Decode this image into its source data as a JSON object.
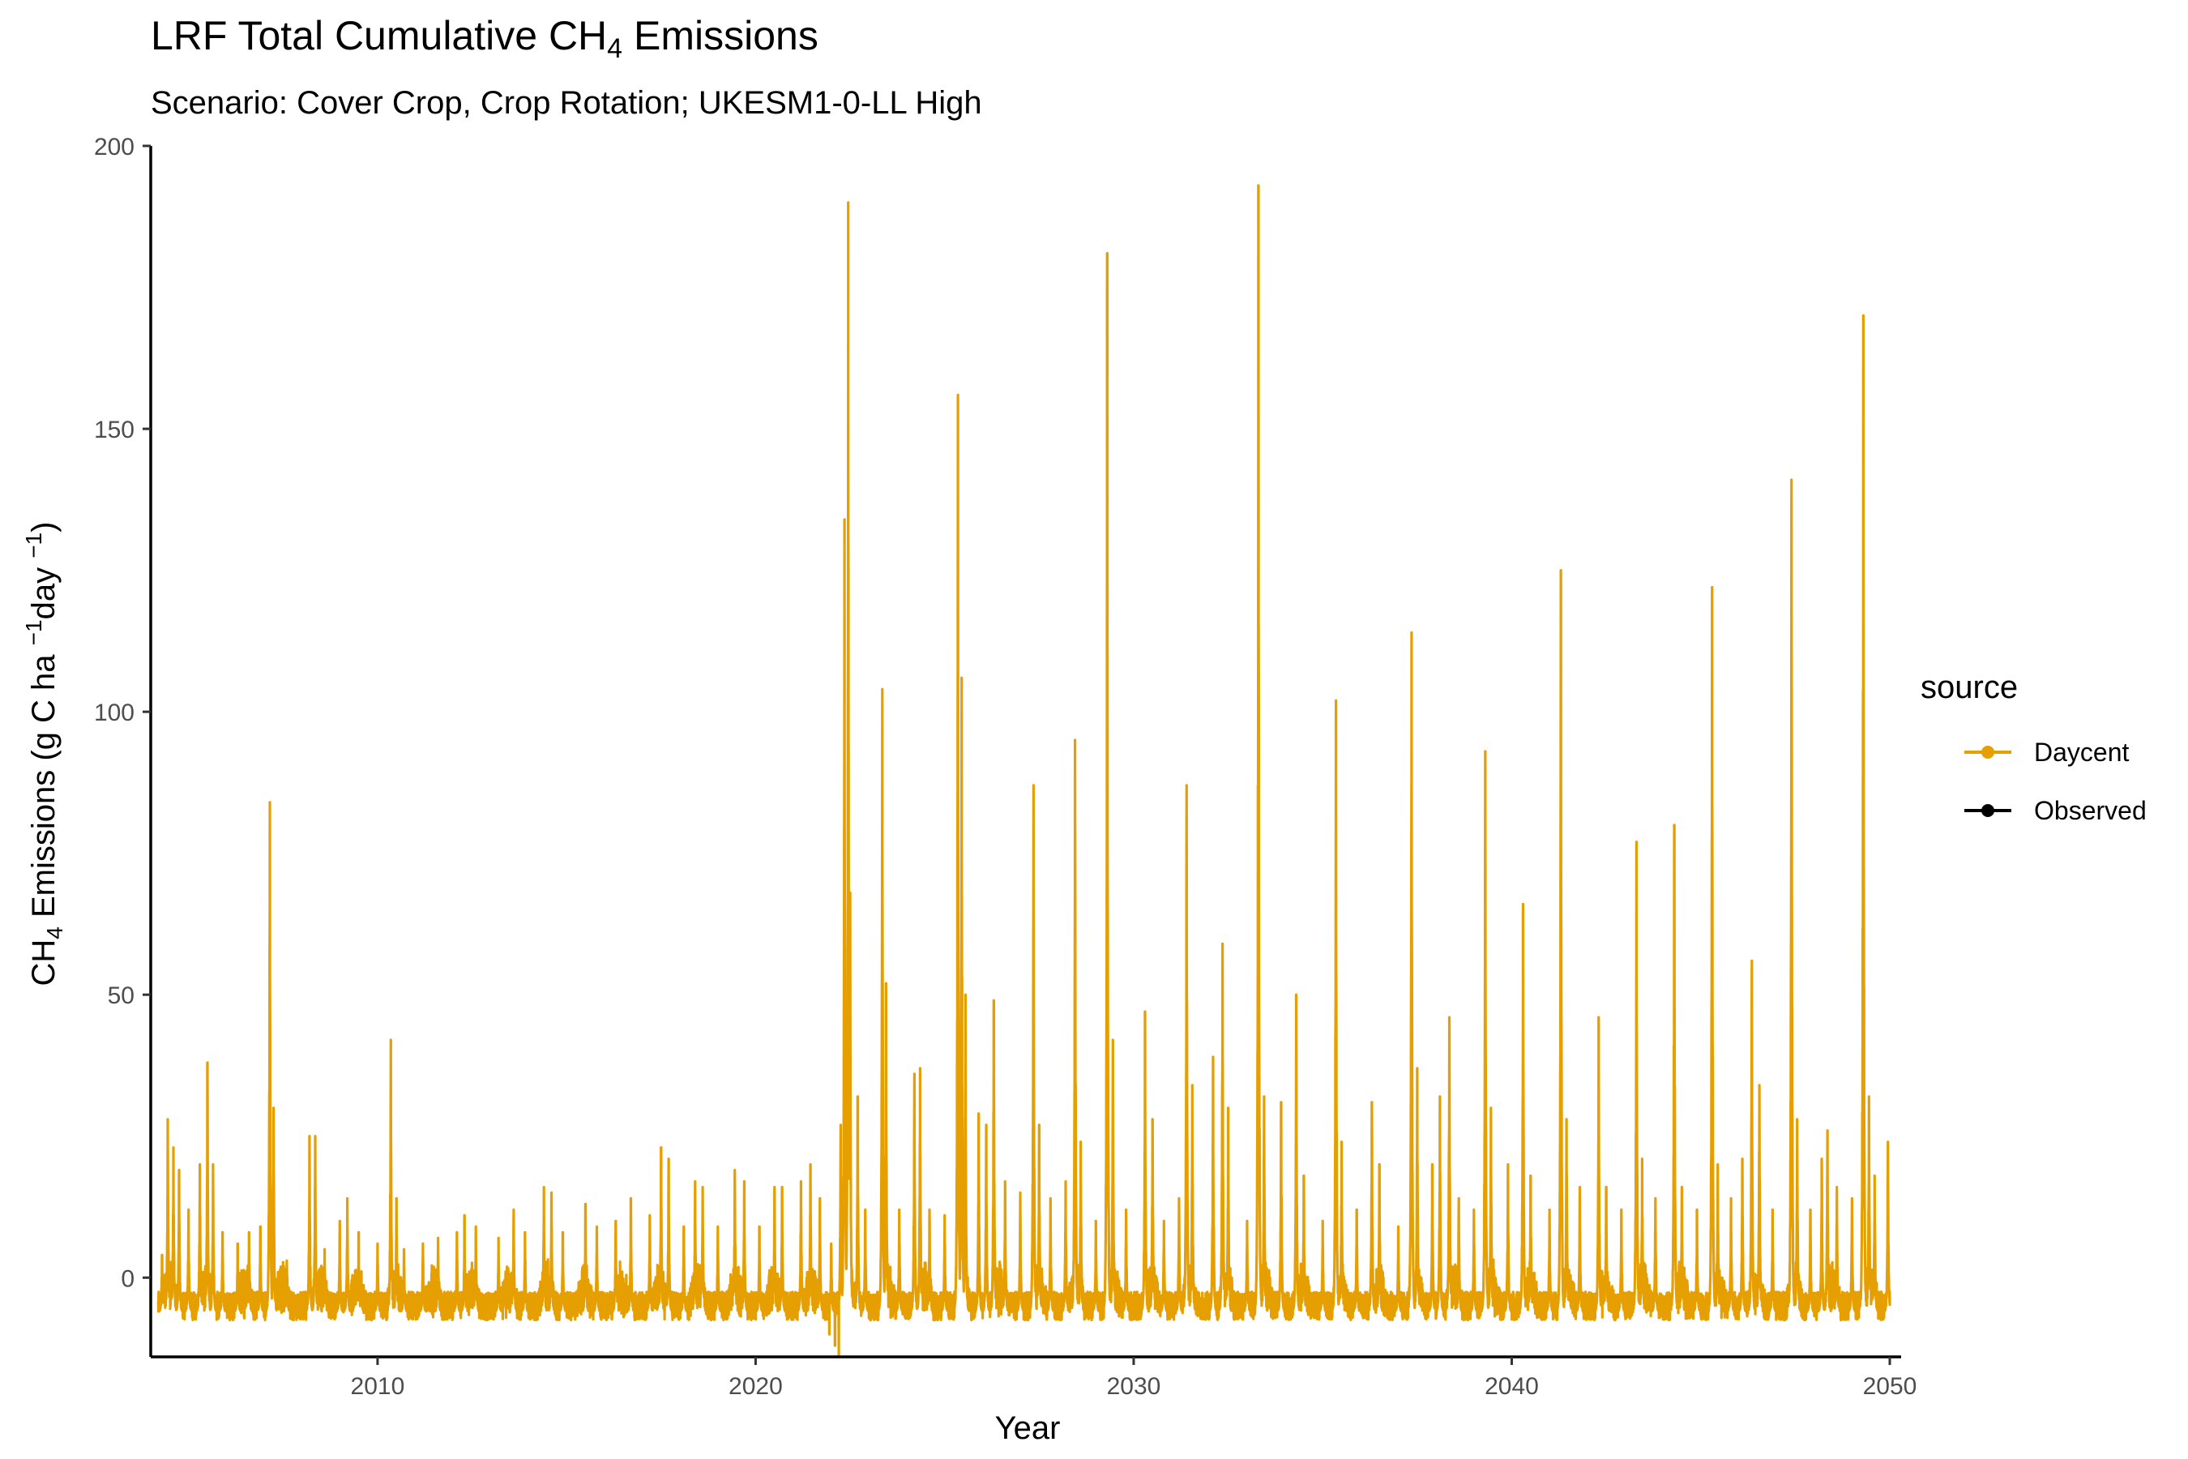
{
  "chart_data": {
    "type": "line",
    "title": "LRF Total Cumulative CH",
    "title_subscript": "4",
    "title_suffix": " Emissions",
    "subtitle": "Scenario: Cover Crop, Crop Rotation; UKESM1-0-LL High",
    "xlabel": "Year",
    "ylabel_prefix": "CH",
    "ylabel_subscript": "4",
    "ylabel_main": " Emissions (g C ha ",
    "ylabel_exp1": "−1",
    "ylabel_mid": "day ",
    "ylabel_exp2": "−1",
    "ylabel_close": ")",
    "xlim": [
      2004.0,
      2050.3
    ],
    "ylim": [
      -14,
      200
    ],
    "xticks": [
      2010,
      2020,
      2030,
      2040,
      2050
    ],
    "yticks": [
      0,
      50,
      100,
      150,
      200
    ],
    "grid": false,
    "legend": {
      "title": "source",
      "position": "right",
      "entries": [
        {
          "name": "Daycent",
          "color": "#E69F00"
        },
        {
          "name": "Observed",
          "color": "#000000"
        }
      ]
    },
    "series": [
      {
        "name": "Daycent",
        "color": "#E69F00",
        "baseline": -6,
        "noise_amplitude": 2.5,
        "peaks": [
          [
            2004.3,
            4
          ],
          [
            2004.45,
            28
          ],
          [
            2004.6,
            23
          ],
          [
            2004.75,
            19
          ],
          [
            2005.0,
            12
          ],
          [
            2005.3,
            20
          ],
          [
            2005.5,
            38
          ],
          [
            2005.65,
            20
          ],
          [
            2005.9,
            8
          ],
          [
            2006.3,
            6
          ],
          [
            2006.6,
            8
          ],
          [
            2006.9,
            9
          ],
          [
            2007.15,
            84
          ],
          [
            2007.25,
            30
          ],
          [
            2007.6,
            3
          ],
          [
            2008.2,
            25
          ],
          [
            2008.35,
            25
          ],
          [
            2008.6,
            5
          ],
          [
            2009.0,
            10
          ],
          [
            2009.2,
            14
          ],
          [
            2009.5,
            8
          ],
          [
            2010.0,
            6
          ],
          [
            2010.35,
            42
          ],
          [
            2010.5,
            14
          ],
          [
            2010.7,
            5
          ],
          [
            2011.2,
            6
          ],
          [
            2011.6,
            7
          ],
          [
            2012.1,
            8
          ],
          [
            2012.3,
            11
          ],
          [
            2012.6,
            9
          ],
          [
            2013.2,
            7
          ],
          [
            2013.6,
            12
          ],
          [
            2013.9,
            8
          ],
          [
            2014.4,
            16
          ],
          [
            2014.6,
            15
          ],
          [
            2014.9,
            8
          ],
          [
            2015.5,
            13
          ],
          [
            2015.8,
            9
          ],
          [
            2016.3,
            10
          ],
          [
            2016.7,
            14
          ],
          [
            2017.2,
            11
          ],
          [
            2017.5,
            23
          ],
          [
            2017.7,
            21
          ],
          [
            2018.1,
            9
          ],
          [
            2018.4,
            17
          ],
          [
            2018.6,
            16
          ],
          [
            2019.0,
            9
          ],
          [
            2019.45,
            19
          ],
          [
            2019.7,
            17
          ],
          [
            2020.1,
            9
          ],
          [
            2020.5,
            16
          ],
          [
            2020.7,
            16
          ],
          [
            2021.2,
            17
          ],
          [
            2021.45,
            20
          ],
          [
            2021.7,
            14
          ],
          [
            2022.0,
            6
          ],
          [
            2022.25,
            27
          ],
          [
            2022.35,
            134
          ],
          [
            2022.45,
            190
          ],
          [
            2022.5,
            68
          ],
          [
            2022.7,
            32
          ],
          [
            2022.9,
            12
          ],
          [
            2023.35,
            104
          ],
          [
            2023.45,
            52
          ],
          [
            2023.8,
            12
          ],
          [
            2024.2,
            36
          ],
          [
            2024.35,
            37
          ],
          [
            2024.6,
            12
          ],
          [
            2025.0,
            11
          ],
          [
            2025.35,
            156
          ],
          [
            2025.45,
            106
          ],
          [
            2025.55,
            50
          ],
          [
            2025.9,
            29
          ],
          [
            2026.1,
            27
          ],
          [
            2026.3,
            49
          ],
          [
            2026.6,
            17
          ],
          [
            2027.0,
            15
          ],
          [
            2027.35,
            87
          ],
          [
            2027.5,
            27
          ],
          [
            2027.8,
            14
          ],
          [
            2028.2,
            17
          ],
          [
            2028.45,
            95
          ],
          [
            2028.6,
            24
          ],
          [
            2029.0,
            10
          ],
          [
            2029.3,
            181
          ],
          [
            2029.45,
            42
          ],
          [
            2029.8,
            12
          ],
          [
            2030.3,
            47
          ],
          [
            2030.5,
            28
          ],
          [
            2030.8,
            10
          ],
          [
            2031.2,
            14
          ],
          [
            2031.4,
            87
          ],
          [
            2031.55,
            34
          ],
          [
            2032.1,
            39
          ],
          [
            2032.35,
            59
          ],
          [
            2032.5,
            30
          ],
          [
            2033.0,
            10
          ],
          [
            2033.3,
            193
          ],
          [
            2033.45,
            32
          ],
          [
            2033.9,
            31
          ],
          [
            2034.3,
            50
          ],
          [
            2034.5,
            18
          ],
          [
            2035.0,
            10
          ],
          [
            2035.35,
            102
          ],
          [
            2035.5,
            24
          ],
          [
            2035.9,
            12
          ],
          [
            2036.3,
            31
          ],
          [
            2036.5,
            20
          ],
          [
            2037.0,
            9
          ],
          [
            2037.35,
            114
          ],
          [
            2037.5,
            37
          ],
          [
            2037.9,
            20
          ],
          [
            2038.1,
            32
          ],
          [
            2038.35,
            46
          ],
          [
            2038.6,
            14
          ],
          [
            2039.0,
            12
          ],
          [
            2039.3,
            93
          ],
          [
            2039.45,
            30
          ],
          [
            2039.9,
            20
          ],
          [
            2040.3,
            66
          ],
          [
            2040.5,
            18
          ],
          [
            2041.0,
            12
          ],
          [
            2041.3,
            125
          ],
          [
            2041.45,
            28
          ],
          [
            2041.8,
            16
          ],
          [
            2042.3,
            46
          ],
          [
            2042.5,
            16
          ],
          [
            2042.9,
            12
          ],
          [
            2043.3,
            77
          ],
          [
            2043.45,
            21
          ],
          [
            2043.8,
            14
          ],
          [
            2044.3,
            80
          ],
          [
            2044.5,
            16
          ],
          [
            2044.9,
            12
          ],
          [
            2045.3,
            122
          ],
          [
            2045.45,
            20
          ],
          [
            2045.8,
            14
          ],
          [
            2046.1,
            21
          ],
          [
            2046.35,
            56
          ],
          [
            2046.55,
            34
          ],
          [
            2046.9,
            12
          ],
          [
            2047.4,
            141
          ],
          [
            2047.55,
            28
          ],
          [
            2047.9,
            12
          ],
          [
            2048.2,
            21
          ],
          [
            2048.35,
            26
          ],
          [
            2048.6,
            16
          ],
          [
            2049.0,
            14
          ],
          [
            2049.3,
            170
          ],
          [
            2049.45,
            32
          ],
          [
            2049.6,
            18
          ],
          [
            2049.95,
            24
          ]
        ],
        "dips": [
          [
            2021.95,
            -10
          ],
          [
            2022.1,
            -12
          ],
          [
            2022.2,
            -14
          ]
        ]
      }
    ]
  }
}
